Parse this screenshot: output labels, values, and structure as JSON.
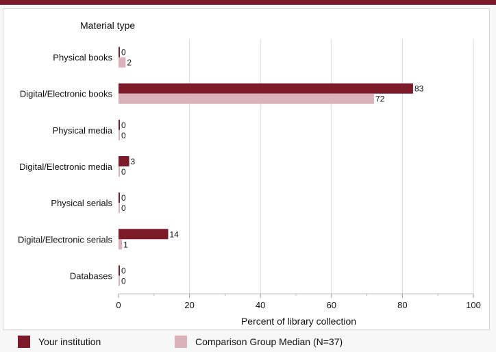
{
  "chart_data": {
    "type": "bar",
    "orientation": "horizontal",
    "title": "Material type",
    "xlabel": "Percent of library collection",
    "ylabel": "",
    "xlim": [
      0,
      100
    ],
    "xticks": [
      0,
      20,
      40,
      60,
      80,
      100
    ],
    "grid": true,
    "legend_position": "bottom",
    "categories": [
      "Physical books",
      "Digital/Electronic books",
      "Physical media",
      "Digital/Electronic media",
      "Physical serials",
      "Digital/Electronic serials",
      "Databases"
    ],
    "series": [
      {
        "name": "Your institution",
        "color": "#7d1a2a",
        "values": [
          0,
          83,
          0,
          3,
          0,
          14,
          0
        ]
      },
      {
        "name": "Comparison Group Median (N=37)",
        "color": "#dbb2b9",
        "values": [
          2,
          72,
          0,
          0,
          0,
          1,
          0
        ]
      }
    ]
  }
}
